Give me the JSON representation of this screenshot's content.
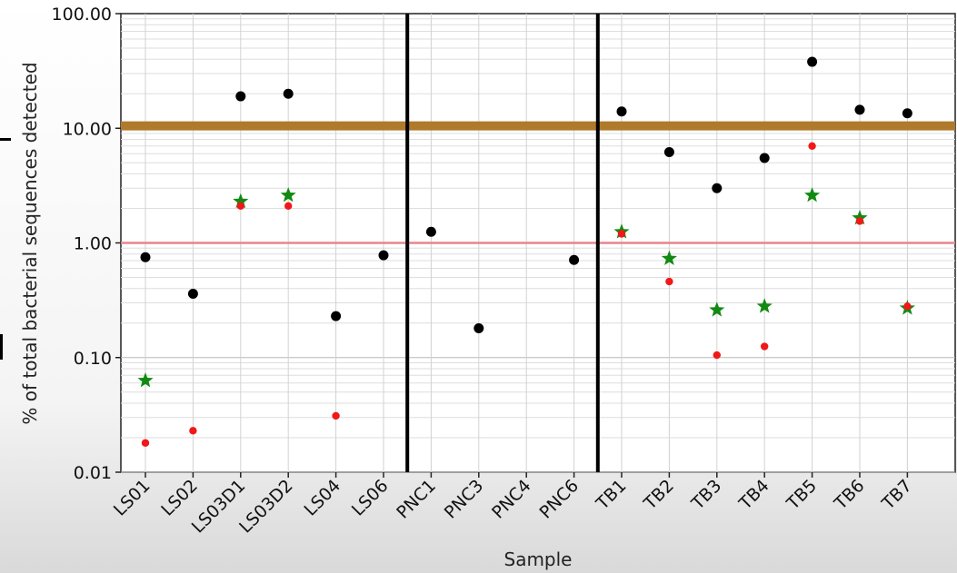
{
  "chart_data": {
    "type": "scatter",
    "xlabel": "Sample",
    "ylabel": "% of total bacterial sequences detected",
    "yscale": "log",
    "ylim": [
      0.01,
      100
    ],
    "yticks": [
      0.01,
      0.1,
      1,
      10,
      100
    ],
    "ytick_labels": [
      "0.01",
      "0.10",
      "1.00",
      "10.00",
      "100.00"
    ],
    "grid": true,
    "categories": [
      "LS01",
      "LS02",
      "LS03D1",
      "LS03D2",
      "LS04",
      "LS06",
      "PNC1",
      "PNC3",
      "PNC4",
      "PNC6",
      "TB1",
      "TB2",
      "TB3",
      "TB4",
      "TB5",
      "TB6",
      "TB7"
    ],
    "series": [
      {
        "marker": "circle",
        "color": "#000000",
        "values": [
          0.75,
          0.36,
          19,
          20,
          0.23,
          0.78,
          1.25,
          0.18,
          null,
          0.71,
          14,
          6.2,
          3.0,
          5.5,
          38,
          14.5,
          13.5
        ]
      },
      {
        "marker": "star",
        "color": "#128a12",
        "values": [
          0.063,
          null,
          2.3,
          2.6,
          null,
          null,
          null,
          null,
          null,
          null,
          1.25,
          0.73,
          0.26,
          0.28,
          2.6,
          1.65,
          0.27
        ]
      },
      {
        "marker": "dot",
        "color": "#f01818",
        "values": [
          0.018,
          0.023,
          2.1,
          2.1,
          0.031,
          null,
          null,
          null,
          null,
          null,
          1.2,
          0.46,
          0.105,
          0.125,
          7.0,
          1.55,
          0.28
        ]
      }
    ],
    "reference_lines": [
      {
        "y": 1.0,
        "color": "#e8868c"
      },
      {
        "y": 10.5,
        "color": "#b07a2c"
      }
    ],
    "group_separators_after": [
      "LS06",
      "PNC6"
    ]
  }
}
